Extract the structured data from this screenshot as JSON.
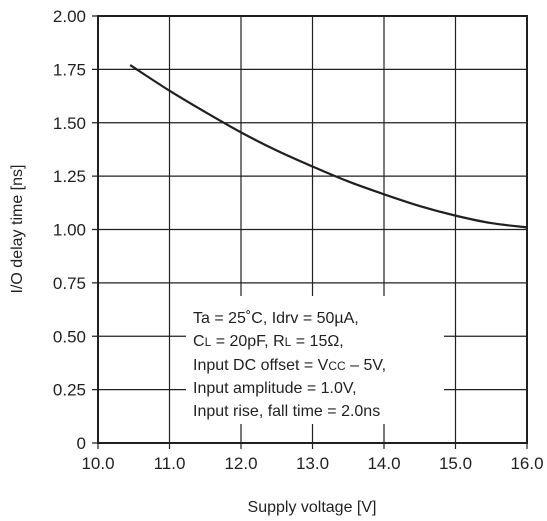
{
  "chart_data": {
    "type": "line",
    "title": "",
    "xlabel": "Supply voltage [V]",
    "ylabel": "I/O delay time [ns]",
    "xlim": [
      10.0,
      16.0
    ],
    "ylim": [
      0,
      2.0
    ],
    "x_ticks": [
      "10.0",
      "11.0",
      "12.0",
      "13.0",
      "14.0",
      "15.0",
      "16.0"
    ],
    "y_ticks": [
      "0",
      "0.25",
      "0.50",
      "0.75",
      "1.00",
      "1.25",
      "1.50",
      "1.75",
      "2.00"
    ],
    "grid": true,
    "series": [
      {
        "x": [
          10.45,
          11.0,
          11.5,
          12.0,
          12.5,
          13.0,
          13.5,
          14.0,
          14.5,
          15.0,
          15.5,
          16.0
        ],
        "y": [
          1.77,
          1.65,
          1.55,
          1.455,
          1.37,
          1.295,
          1.225,
          1.165,
          1.11,
          1.065,
          1.03,
          1.01
        ],
        "color": "#231f20"
      }
    ],
    "annotation": {
      "line1": "Ta = 25˚C, Idrv = 50µA,",
      "line2_a": "C",
      "line2_a_sub": "L",
      "line2_b": " = 20pF, R",
      "line2_b_sub": "L",
      "line2_c": " = 15Ω,",
      "line3_a": "Input DC offset = V",
      "line3_sub": "CC",
      "line3_b": " – 5V,",
      "line4": "Input amplitude = 1.0V,",
      "line5": "Input rise, fall time = 2.0ns"
    }
  }
}
